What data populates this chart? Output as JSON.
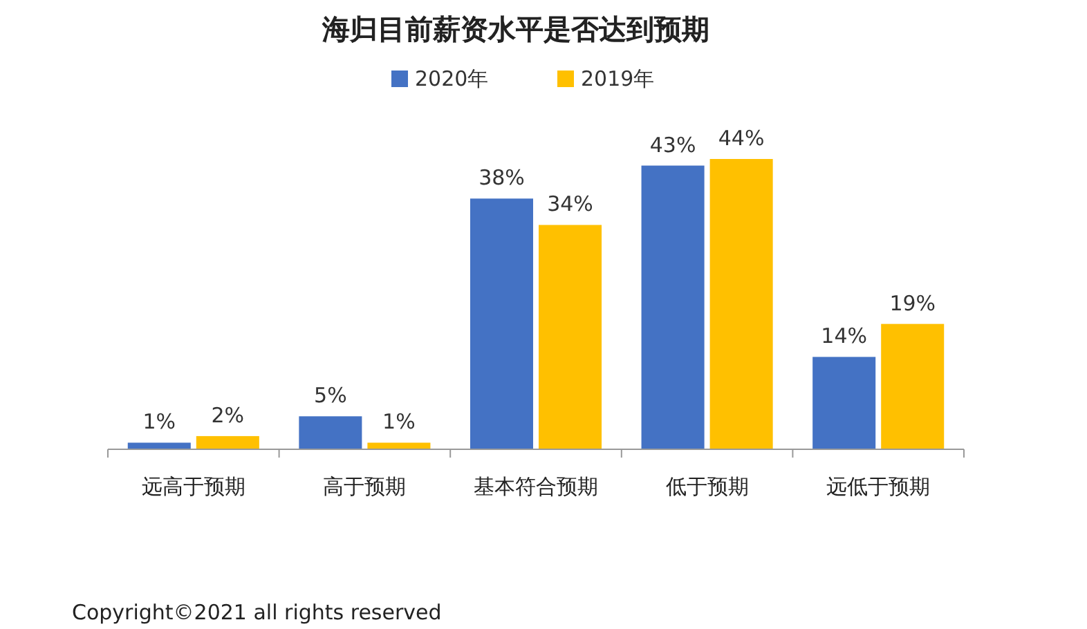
{
  "chart_data": {
    "type": "bar",
    "title": "海归目前薪资水平是否达到预期",
    "categories": [
      "远高于预期",
      "高于预期",
      "基本符合预期",
      "低于预期",
      "远低于预期"
    ],
    "series": [
      {
        "name": "2020年",
        "color": "#4472c4",
        "values": [
          1,
          5,
          38,
          43,
          14
        ],
        "value_labels": [
          "1%",
          "5%",
          "38%",
          "43%",
          "14%"
        ]
      },
      {
        "name": "2019年",
        "color": "#ffc000",
        "values": [
          2,
          1,
          34,
          44,
          19
        ],
        "value_labels": [
          "2%",
          "1%",
          "34%",
          "44%",
          "19%"
        ]
      }
    ],
    "legend": "top",
    "annotations": [
      "Copyright©2021 all rights reserved"
    ]
  }
}
